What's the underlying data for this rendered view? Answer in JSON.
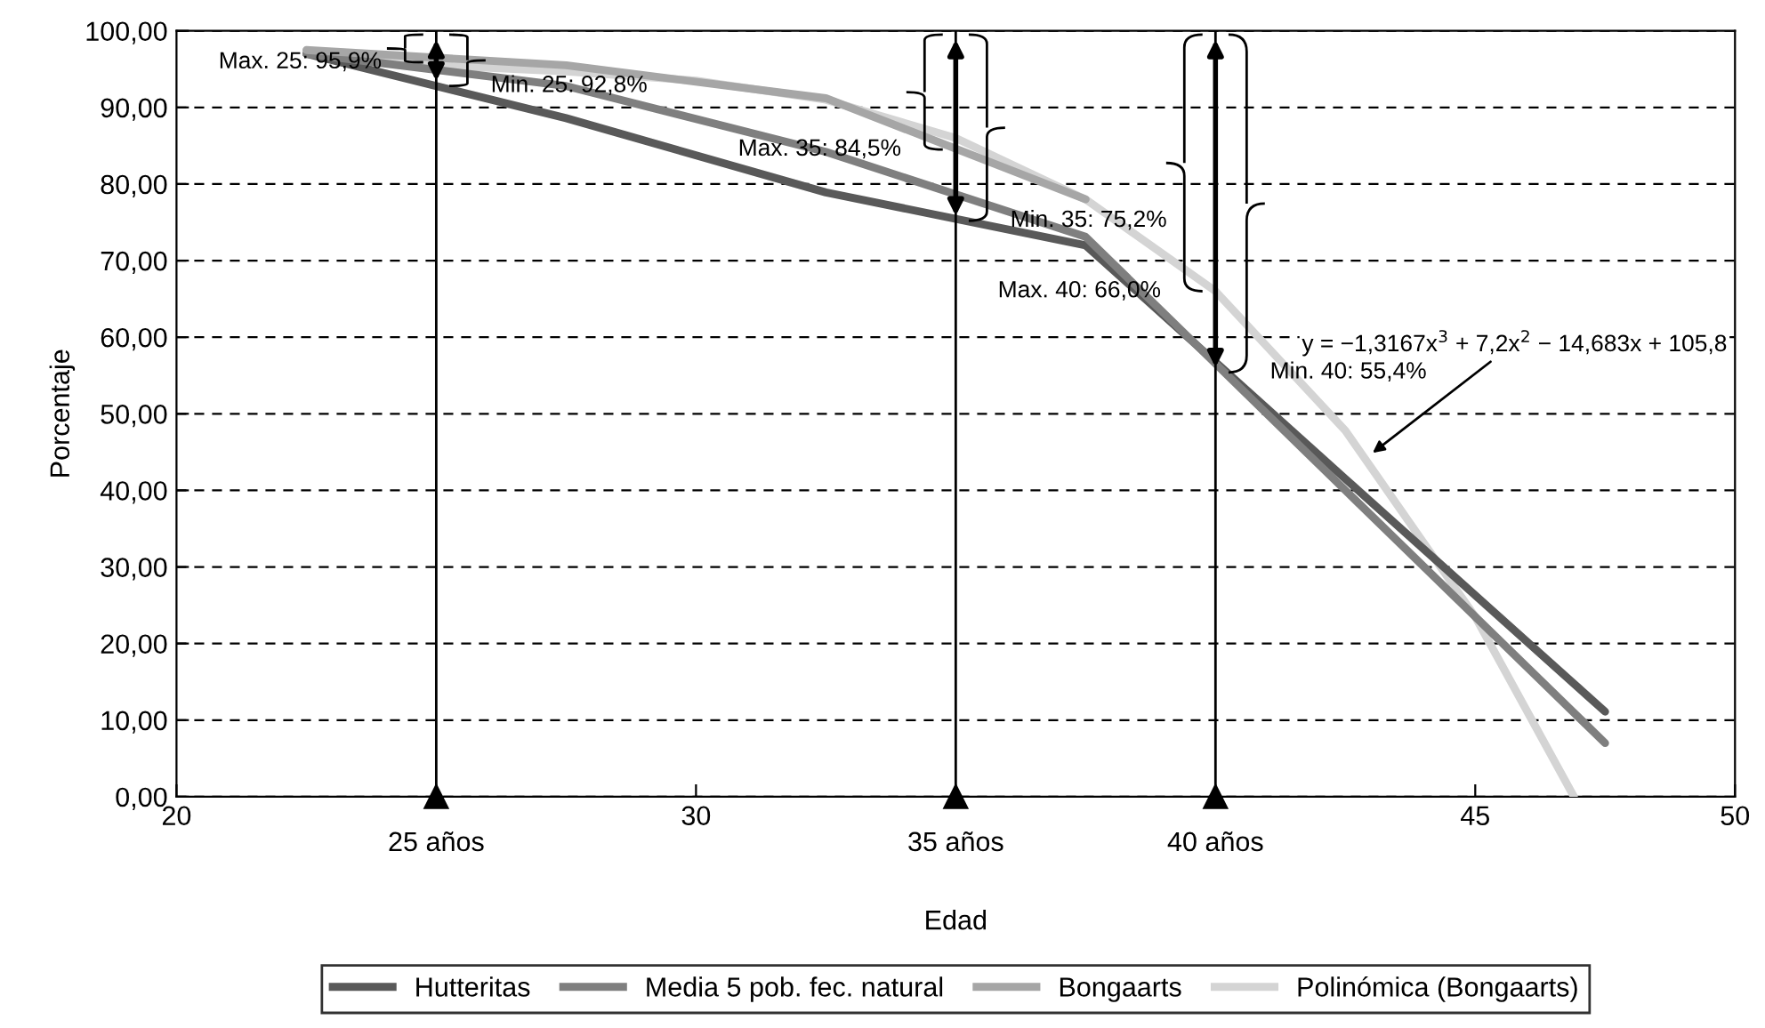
{
  "chart_data": {
    "type": "line",
    "xlabel": "Edad",
    "ylabel": "Porcentaje",
    "xlim": [
      20,
      50
    ],
    "ylim": [
      0,
      100
    ],
    "xticks": [
      20,
      30,
      45,
      50
    ],
    "yticks": [
      {
        "value": 0,
        "label": "0,00"
      },
      {
        "value": 10,
        "label": "10,00"
      },
      {
        "value": 20,
        "label": "20,00"
      },
      {
        "value": 30,
        "label": "30,00"
      },
      {
        "value": 40,
        "label": "40,00"
      },
      {
        "value": 50,
        "label": "50,00"
      },
      {
        "value": 60,
        "label": "60,00"
      },
      {
        "value": 70,
        "label": "70,00"
      },
      {
        "value": 80,
        "label": "80,00"
      },
      {
        "value": 90,
        "label": "90,00"
      },
      {
        "value": 100,
        "label": "100,00"
      }
    ],
    "grid": "y",
    "legend": "bottom",
    "marker": "none",
    "line_style": "solid",
    "series": [
      {
        "name": "Hutteritas",
        "color": "#595959",
        "x": [
          22.5,
          27.5,
          32.5,
          37.5,
          42.5,
          47.5
        ],
        "values": [
          97,
          88.6,
          78.9,
          72.0,
          41.5,
          11.1
        ]
      },
      {
        "name": "Media 5 pob. fec. natural",
        "color": "#7f7f7f",
        "x": [
          22.5,
          27.5,
          32.5,
          37.5,
          42.5,
          47.5
        ],
        "values": [
          97,
          92.8,
          84.2,
          73.1,
          40,
          7.0
        ]
      },
      {
        "name": "Bongaarts",
        "color": "#a6a6a6",
        "x": [
          22.5,
          27.5,
          32.5,
          37.5
        ],
        "values": [
          97.5,
          95.5,
          91.2,
          78
        ]
      },
      {
        "name": "Polinómica (Bongaarts)",
        "color": "#d4d4d4",
        "x": [
          22.5,
          25,
          27.5,
          30,
          32.5,
          35,
          37.5,
          40,
          42.5,
          45,
          46.9
        ],
        "values": [
          97,
          95.5,
          94.7,
          93.5,
          91,
          86,
          78,
          66,
          47.8,
          23.5,
          0
        ]
      }
    ],
    "ref_lines": [
      {
        "axis": "x",
        "value": 25,
        "label": "25 años",
        "color": "#000000"
      },
      {
        "axis": "x",
        "value": 35,
        "label": "35 años",
        "color": "#000000"
      },
      {
        "axis": "x",
        "value": 40,
        "label": "40 años",
        "color": "#000000"
      }
    ],
    "annotations": [
      {
        "text": "Max. 25: 95,9%",
        "x": 25,
        "y": 95.9
      },
      {
        "text": "Min. 25: 92,8%",
        "x": 25,
        "y": 92.8
      },
      {
        "text": "Max. 35: 84,5%",
        "x": 35,
        "y": 84.5
      },
      {
        "text": "Min. 35: 75,2%",
        "x": 35,
        "y": 75.2
      },
      {
        "text": "Max. 40: 66,0%",
        "x": 40,
        "y": 66.0
      },
      {
        "text": "Min. 40: 55,4%",
        "x": 40,
        "y": 55.4
      },
      "y = −1,3167x$^{3}$ + 7,2x$^{2}$ − 14,683x + 105,8"
    ]
  }
}
